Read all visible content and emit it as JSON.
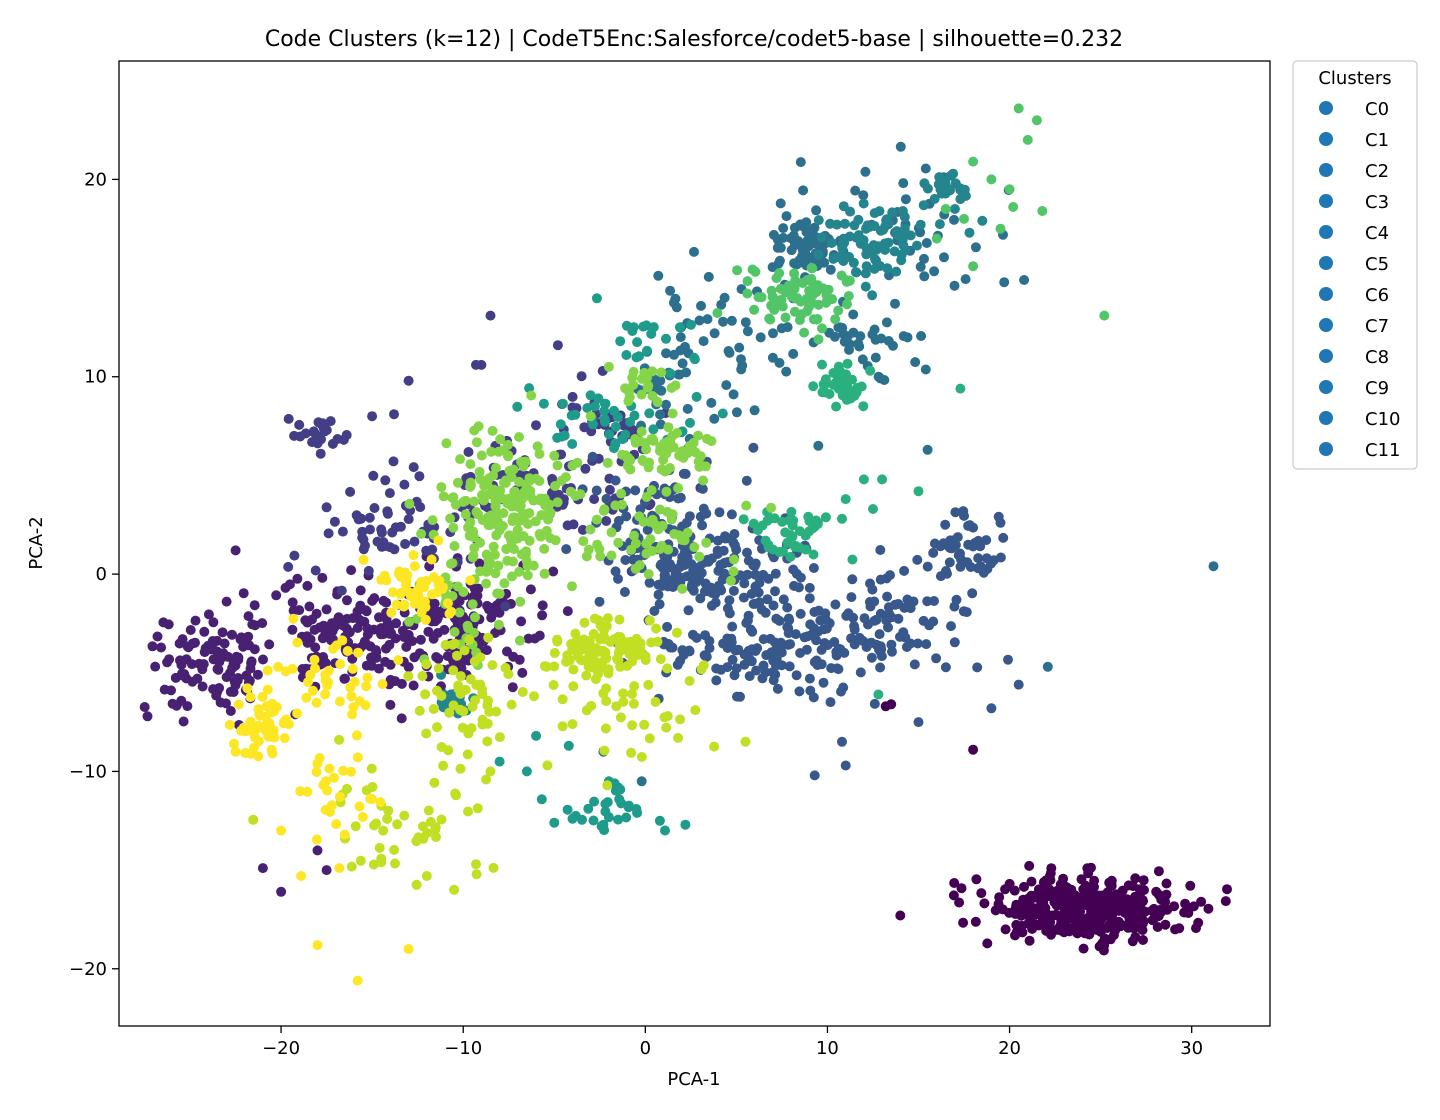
{
  "chart_data": {
    "type": "scatter",
    "title": "Code Clusters (k=12) | CodeT5Enc:Salesforce/codet5-base | silhouette=0.232",
    "xlabel": "PCA-1",
    "ylabel": "PCA-2",
    "xlim": [
      -28.9,
      34.3
    ],
    "ylim": [
      -22.9,
      26.0
    ],
    "xticks": [
      -20,
      -10,
      0,
      10,
      20,
      30
    ],
    "yticks": [
      -20,
      -10,
      0,
      10,
      20
    ],
    "xtick_labels": [
      "−20",
      "−10",
      "0",
      "10",
      "20",
      "30"
    ],
    "ytick_labels": [
      "−20",
      "−10",
      "0",
      "10",
      "20"
    ],
    "grid": false,
    "legend": {
      "title": "Clusters",
      "placement": "outside-top-right",
      "marker_color": "#1f77b4",
      "entries": [
        "C0",
        "C1",
        "C2",
        "C3",
        "C4",
        "C5",
        "C6",
        "C7",
        "C8",
        "C9",
        "C10",
        "C11"
      ]
    },
    "series": [
      {
        "name": "C0",
        "color": "#440154",
        "clusters": [
          {
            "cx": 24.0,
            "cy": -17.0,
            "sx": 2.7,
            "sy": 0.8,
            "n": 380
          }
        ],
        "points": [
          [
            14.0,
            -17.3
          ],
          [
            18.0,
            -8.9
          ],
          [
            13.2,
            -6.7
          ],
          [
            13.5,
            -6.6
          ]
        ]
      },
      {
        "name": "C1",
        "color": "#482173",
        "clusters": [
          {
            "cx": -23.5,
            "cy": -4.5,
            "sx": 1.8,
            "sy": 1.3,
            "n": 110
          },
          {
            "cx": -15.5,
            "cy": -3.0,
            "sx": 3.2,
            "sy": 1.5,
            "n": 170
          },
          {
            "cx": -9.5,
            "cy": -2.5,
            "sx": 1.8,
            "sy": 1.3,
            "n": 110
          }
        ],
        "points": [
          [
            -21.0,
            -14.9
          ],
          [
            -20.0,
            -16.1
          ],
          [
            -18.0,
            -14.0
          ],
          [
            -17.5,
            -15.0
          ],
          [
            -22.5,
            1.2
          ]
        ]
      },
      {
        "name": "C2",
        "color": "#433e85",
        "clusters": [
          {
            "cx": -18.0,
            "cy": 7.0,
            "sx": 0.9,
            "sy": 0.5,
            "n": 25
          },
          {
            "cx": -13.5,
            "cy": 2.5,
            "sx": 2.5,
            "sy": 1.8,
            "n": 80
          },
          {
            "cx": -2.0,
            "cy": 7.8,
            "sx": 1.5,
            "sy": 0.8,
            "n": 40
          },
          {
            "cx": -5.0,
            "cy": 4.5,
            "sx": 2.5,
            "sy": 1.5,
            "n": 60
          }
        ],
        "points": [
          [
            -8.5,
            13.1
          ],
          [
            -9.0,
            10.6
          ],
          [
            -4.8,
            11.6
          ],
          [
            -13.0,
            9.8
          ],
          [
            -13.8,
            8.1
          ],
          [
            -15.0,
            8.0
          ],
          [
            -9.3,
            10.6
          ]
        ]
      },
      {
        "name": "C3",
        "color": "#38588c",
        "clusters": [
          {
            "cx": 3.5,
            "cy": 0.2,
            "sx": 2.5,
            "sy": 1.0,
            "n": 160
          },
          {
            "cx": 6.5,
            "cy": -4.0,
            "sx": 3.5,
            "sy": 1.2,
            "n": 120
          },
          {
            "cx": 12.0,
            "cy": -2.5,
            "sx": 3.0,
            "sy": 1.5,
            "n": 110
          },
          {
            "cx": 17.5,
            "cy": 1.2,
            "sx": 1.2,
            "sy": 0.8,
            "n": 50
          },
          {
            "cx": 1.0,
            "cy": 3.0,
            "sx": 2.5,
            "sy": 1.5,
            "n": 60
          }
        ],
        "points": [
          [
            19.5,
            2.6
          ],
          [
            20.5,
            -5.6
          ],
          [
            19.0,
            -6.8
          ],
          [
            15.0,
            -7.5
          ],
          [
            9.3,
            -10.2
          ],
          [
            11.0,
            -9.7
          ],
          [
            10.8,
            -8.5
          ],
          [
            8.5,
            -4.0
          ]
        ]
      },
      {
        "name": "C4",
        "color": "#2d708e",
        "clusters": [
          {
            "cx": 9.0,
            "cy": 16.5,
            "sx": 1.0,
            "sy": 0.7,
            "n": 70
          },
          {
            "cx": 4.0,
            "cy": 13.0,
            "sx": 2.2,
            "sy": 1.3,
            "n": 40
          },
          {
            "cx": 1.5,
            "cy": 9.0,
            "sx": 1.5,
            "sy": 1.5,
            "n": 30
          },
          {
            "cx": 11.5,
            "cy": 11.5,
            "sx": 2.0,
            "sy": 1.2,
            "n": 40
          },
          {
            "cx": 14.5,
            "cy": 17.5,
            "sx": 2.2,
            "sy": 1.5,
            "n": 40
          }
        ],
        "points": [
          [
            9.5,
            6.5
          ],
          [
            15.5,
            6.3
          ],
          [
            -2.3,
            -9.0
          ],
          [
            -0.2,
            -10.5
          ],
          [
            31.2,
            0.4
          ],
          [
            22.1,
            -4.7
          ],
          [
            20.8,
            14.9
          ],
          [
            6.0,
            8.3
          ]
        ]
      },
      {
        "name": "C5",
        "color": "#25858e",
        "clusters": [
          {
            "cx": 12.5,
            "cy": 17.0,
            "sx": 1.6,
            "sy": 1.0,
            "n": 80
          },
          {
            "cx": 16.5,
            "cy": 19.6,
            "sx": 0.6,
            "sy": 0.3,
            "n": 25
          },
          {
            "cx": -10.5,
            "cy": -6.5,
            "sx": 0.6,
            "sy": 0.4,
            "n": 20
          }
        ],
        "points": [
          [
            17.8,
            17.3
          ],
          [
            18.5,
            17.9
          ],
          [
            17.3,
            19.0
          ],
          [
            17.0,
            18.5
          ],
          [
            16.4,
            19.5
          ]
        ]
      },
      {
        "name": "C6",
        "color": "#1e9b8a",
        "clusters": [
          {
            "cx": -2.0,
            "cy": 8.0,
            "sx": 2.0,
            "sy": 0.8,
            "n": 40
          },
          {
            "cx": 0.5,
            "cy": 11.5,
            "sx": 1.5,
            "sy": 1.0,
            "n": 20
          },
          {
            "cx": -2.3,
            "cy": -11.8,
            "sx": 1.3,
            "sy": 0.6,
            "n": 25
          }
        ],
        "points": [
          [
            -5.0,
            -12.6
          ],
          [
            -4.0,
            -12.4
          ],
          [
            -2.3,
            -12.7
          ],
          [
            0.8,
            -12.5
          ],
          [
            2.2,
            -12.7
          ],
          [
            -4.2,
            -8.7
          ],
          [
            -6.0,
            -8.2
          ],
          [
            -8.0,
            -9.5
          ],
          [
            -6.5,
            -10.0
          ],
          [
            -2.0,
            -10.5
          ],
          [
            -1.5,
            -10.8
          ]
        ]
      },
      {
        "name": "C7",
        "color": "#2ab07f",
        "clusters": [
          {
            "cx": 10.7,
            "cy": 9.5,
            "sx": 0.8,
            "sy": 0.6,
            "n": 40
          },
          {
            "cx": 8.2,
            "cy": 2.0,
            "sx": 1.2,
            "sy": 0.8,
            "n": 40
          }
        ],
        "points": [
          [
            12.0,
            4.8
          ],
          [
            13.0,
            4.8
          ],
          [
            11.0,
            3.8
          ],
          [
            15.0,
            4.2
          ],
          [
            12.5,
            3.3
          ],
          [
            17.3,
            9.4
          ],
          [
            10.8,
            2.8
          ],
          [
            12.8,
            -6.1
          ]
        ]
      },
      {
        "name": "C8",
        "color": "#52c569",
        "clusters": [
          {
            "cx": 8.8,
            "cy": 14.0,
            "sx": 1.4,
            "sy": 0.8,
            "n": 80
          }
        ],
        "points": [
          [
            20.5,
            23.6
          ],
          [
            21.5,
            23.0
          ],
          [
            21.0,
            22.0
          ],
          [
            18.0,
            20.9
          ],
          [
            19.0,
            20.0
          ],
          [
            20.0,
            19.5
          ],
          [
            20.2,
            18.6
          ],
          [
            21.8,
            18.4
          ],
          [
            17.5,
            18.0
          ],
          [
            18.0,
            15.6
          ],
          [
            19.5,
            17.5
          ],
          [
            25.2,
            13.1
          ],
          [
            16.0,
            17.0
          ],
          [
            16.5,
            18.5
          ]
        ]
      },
      {
        "name": "C9",
        "color": "#86d549",
        "clusters": [
          {
            "cx": -7.5,
            "cy": 3.0,
            "sx": 1.8,
            "sy": 1.8,
            "n": 200
          },
          {
            "cx": 1.0,
            "cy": 6.0,
            "sx": 1.3,
            "sy": 0.6,
            "n": 60
          },
          {
            "cx": 0.0,
            "cy": 2.0,
            "sx": 2.5,
            "sy": 1.2,
            "n": 60
          },
          {
            "cx": 0.0,
            "cy": 9.5,
            "sx": 1.0,
            "sy": 0.6,
            "n": 20
          },
          {
            "cx": -10.5,
            "cy": -2.0,
            "sx": 1.5,
            "sy": 1.5,
            "n": 30
          }
        ],
        "points": [
          [
            -3.0,
            8.0
          ],
          [
            -2.0,
            10.5
          ],
          [
            -4.0,
            5.5
          ],
          [
            -5.0,
            6.0
          ]
        ]
      },
      {
        "name": "C10",
        "color": "#c2df23",
        "clusters": [
          {
            "cx": -2.0,
            "cy": -3.8,
            "sx": 1.5,
            "sy": 0.8,
            "n": 100
          },
          {
            "cx": -9.5,
            "cy": -6.5,
            "sx": 1.5,
            "sy": 1.5,
            "n": 60
          },
          {
            "cx": -13.0,
            "cy": -12.5,
            "sx": 2.5,
            "sy": 1.6,
            "n": 45
          },
          {
            "cx": -2.0,
            "cy": -6.5,
            "sx": 2.5,
            "sy": 1.5,
            "n": 40
          }
        ],
        "points": [
          [
            -10.5,
            -16.0
          ],
          [
            -12.0,
            -15.3
          ],
          [
            -14.5,
            -14.6
          ],
          [
            -9.3,
            -14.7
          ],
          [
            5.5,
            -8.5
          ],
          [
            1.8,
            -8.3
          ],
          [
            -8.5,
            -10.0
          ]
        ]
      },
      {
        "name": "C11",
        "color": "#fde725",
        "clusters": [
          {
            "cx": -21.0,
            "cy": -7.5,
            "sx": 0.8,
            "sy": 0.8,
            "n": 50
          },
          {
            "cx": -17.0,
            "cy": -5.5,
            "sx": 1.5,
            "sy": 1.0,
            "n": 40
          },
          {
            "cx": -12.0,
            "cy": -0.5,
            "sx": 1.3,
            "sy": 0.8,
            "n": 50
          },
          {
            "cx": -17.0,
            "cy": -11.0,
            "sx": 1.3,
            "sy": 1.2,
            "n": 25
          }
        ],
        "points": [
          [
            -18.0,
            -18.8
          ],
          [
            -15.8,
            -20.6
          ],
          [
            -13.0,
            -19.0
          ],
          [
            -20.0,
            -13.0
          ],
          [
            -18.9,
            -15.3
          ],
          [
            -16.8,
            -14.9
          ],
          [
            -22.5,
            -9.0
          ],
          [
            -16.5,
            -13.2
          ]
        ]
      }
    ]
  }
}
